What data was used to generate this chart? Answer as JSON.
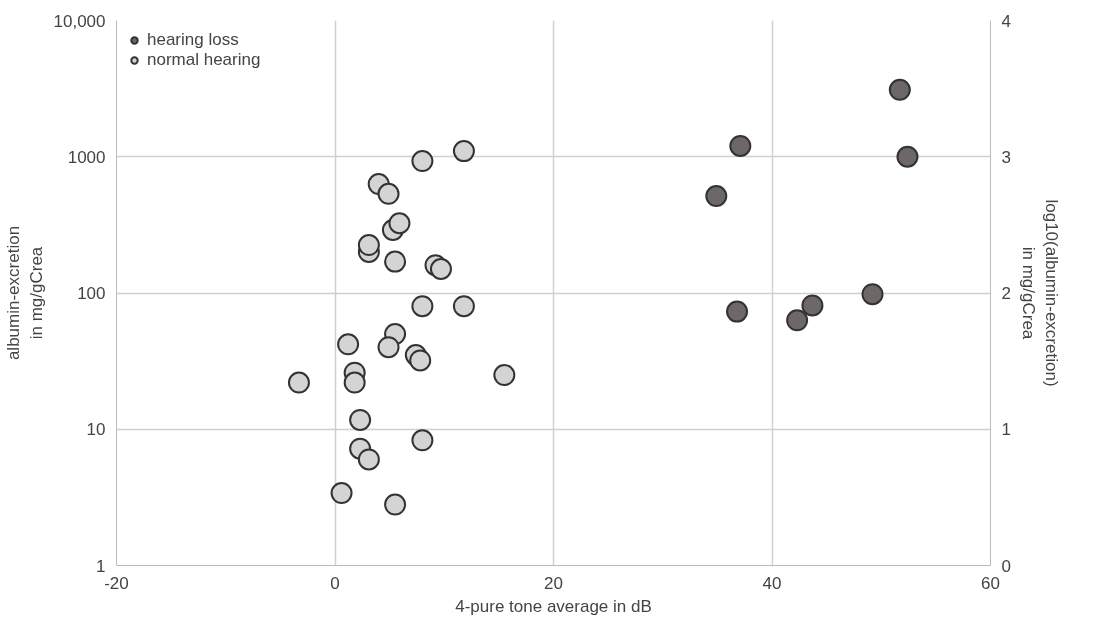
{
  "chart_data": {
    "type": "scatter",
    "xlabel": "4-pure tone average in dB",
    "ylabel": "albumin-excretion\nin mg/gCrea",
    "y2label": "log10(albumin-excretion)\nin mg/gCrea",
    "xlim": [
      -20,
      60
    ],
    "xticks": [
      -20,
      0,
      20,
      40,
      60
    ],
    "ylim": [
      1,
      10000
    ],
    "yticks": [
      1,
      10,
      100,
      1000,
      {
        "value": 10000,
        "label": "10,000"
      }
    ],
    "y2lim": [
      0,
      4
    ],
    "y2ticks": [
      0,
      1,
      2,
      3,
      4
    ],
    "log": "y",
    "grid": true,
    "legend": "top left",
    "marker": "circle",
    "series": [
      {
        "name": "hearing loss",
        "color": "#6e6767",
        "x": [
          34.9,
          37.1,
          51.7,
          52.4,
          36.8,
          42.3,
          43.7,
          49.2
        ],
        "values": [
          515,
          1200,
          3100,
          1000,
          73,
          63,
          81,
          98
        ]
      },
      {
        "name": "normal hearing",
        "color": "#d4d4d4",
        "x": [
          -3.3,
          0.6,
          1.2,
          1.8,
          1.8,
          2.3,
          2.3,
          3.1,
          3.1,
          3.1,
          4.0,
          4.9,
          5.3,
          5.9,
          5.5,
          5.5,
          4.9,
          5.5,
          7.4,
          7.8,
          8.0,
          8.0,
          8.0,
          9.2,
          9.7,
          11.8,
          11.8,
          15.5
        ],
        "values": [
          22,
          3.4,
          42,
          26,
          22,
          11.7,
          7.2,
          6.0,
          200,
          225,
          630,
          535,
          290,
          325,
          170,
          50,
          40,
          2.8,
          35,
          32,
          930,
          80,
          8.3,
          160,
          150,
          1100,
          80,
          25
        ]
      }
    ]
  }
}
